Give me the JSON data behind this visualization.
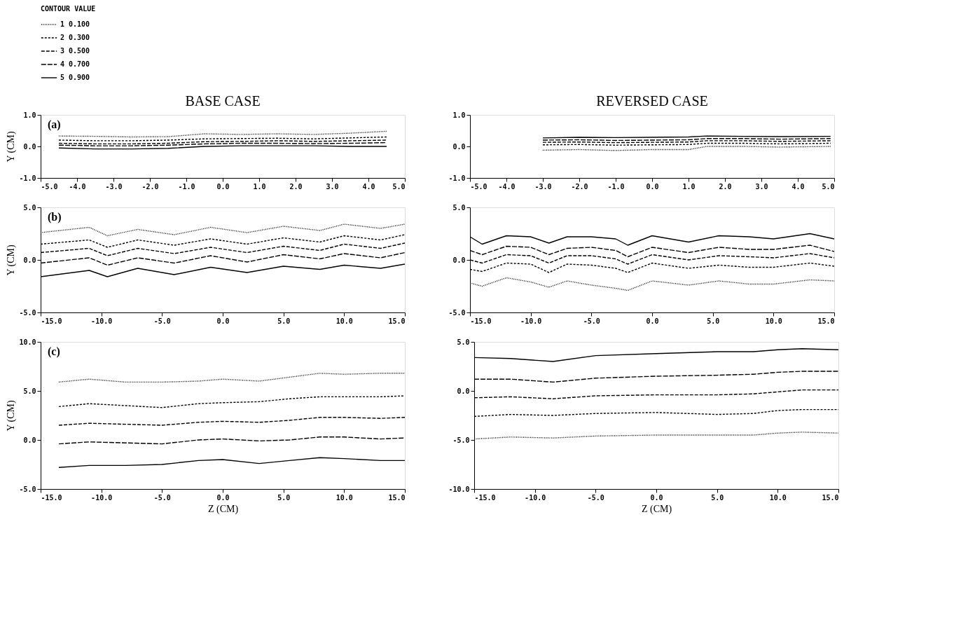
{
  "chart_data": [
    {
      "type": "line",
      "title": "BASE CASE",
      "ylabel": "Y (CM)",
      "legend": "top",
      "legend_title": "CONTOUR VALUE",
      "annotations": [
        "(a)"
      ],
      "xlim": [
        -5,
        5
      ],
      "xticks": [
        {
          "value": -5,
          "label": "-5.0"
        },
        {
          "value": -4,
          "label": "-4.0"
        },
        {
          "value": -3,
          "label": "-3.0"
        },
        {
          "value": -2,
          "label": "-2.0"
        },
        {
          "value": -1,
          "label": "-1.0"
        },
        {
          "value": 0,
          "label": "0.0"
        },
        {
          "value": 1,
          "label": "1.0"
        },
        {
          "value": 2,
          "label": "2.0"
        },
        {
          "value": 3,
          "label": "3.0"
        },
        {
          "value": 4,
          "label": "4.0"
        },
        {
          "value": 5,
          "label": "5.0"
        }
      ],
      "ylim": [
        -1,
        1
      ],
      "yticks": [
        {
          "value": -1,
          "label": "-1.0"
        },
        {
          "value": 0,
          "label": "0.0"
        },
        {
          "value": 1,
          "label": "1.0"
        }
      ],
      "x": [
        -4.5,
        -3.5,
        -2.5,
        -1.5,
        -0.5,
        0.5,
        1.5,
        2.5,
        3.5,
        4.5
      ],
      "series": [
        {
          "name": "1 0.100",
          "color": "#000000",
          "line_style": "dotted",
          "values": [
            0.33,
            0.32,
            0.3,
            0.31,
            0.4,
            0.38,
            0.4,
            0.38,
            0.42,
            0.48
          ]
        },
        {
          "name": "2 0.300",
          "color": "#000000",
          "line_style": "dashed",
          "values": [
            0.2,
            0.18,
            0.18,
            0.2,
            0.24,
            0.25,
            0.26,
            0.24,
            0.27,
            0.3
          ]
        },
        {
          "name": "3 0.500",
          "color": "#000000",
          "line_style": "dashed",
          "values": [
            0.1,
            0.08,
            0.08,
            0.1,
            0.15,
            0.16,
            0.18,
            0.16,
            0.18,
            0.2
          ]
        },
        {
          "name": "4 0.700",
          "color": "#000000",
          "line_style": "dashed",
          "values": [
            0.04,
            0.02,
            0.02,
            0.04,
            0.08,
            0.1,
            0.1,
            0.09,
            0.1,
            0.12
          ]
        },
        {
          "name": "5 0.900",
          "color": "#000000",
          "line_style": "solid",
          "values": [
            -0.05,
            -0.08,
            -0.08,
            -0.06,
            0.0,
            0.02,
            0.02,
            0.02,
            0.0,
            0.0
          ]
        }
      ]
    },
    {
      "type": "line",
      "title": "REVERSED CASE",
      "xlim": [
        -5,
        5
      ],
      "xticks": [
        {
          "value": -5,
          "label": "-5.0"
        },
        {
          "value": -4,
          "label": "-4.0"
        },
        {
          "value": -3,
          "label": "-3.0"
        },
        {
          "value": -2,
          "label": "-2.0"
        },
        {
          "value": -1,
          "label": "-1.0"
        },
        {
          "value": 0,
          "label": "0.0"
        },
        {
          "value": 1,
          "label": "1.0"
        },
        {
          "value": 2,
          "label": "2.0"
        },
        {
          "value": 3,
          "label": "3.0"
        },
        {
          "value": 4,
          "label": "4.0"
        },
        {
          "value": 5,
          "label": "5.0"
        }
      ],
      "ylim": [
        -1,
        1
      ],
      "yticks": [
        {
          "value": -1,
          "label": "-1.0"
        },
        {
          "value": 0,
          "label": "0.0"
        },
        {
          "value": 1,
          "label": "1.0"
        }
      ],
      "x": [
        -3,
        -2,
        -1,
        0,
        1,
        1.5,
        2.5,
        3.5,
        4.9
      ],
      "series": [
        {
          "color": "#000000",
          "line_style": "dotted",
          "values": [
            -0.12,
            -0.1,
            -0.13,
            -0.1,
            -0.1,
            0.0,
            0.0,
            -0.02,
            0.0
          ]
        },
        {
          "color": "#000000",
          "line_style": "dashed",
          "values": [
            0.05,
            0.06,
            0.04,
            0.05,
            0.06,
            0.1,
            0.1,
            0.08,
            0.1
          ]
        },
        {
          "color": "#000000",
          "line_style": "dashed",
          "values": [
            0.13,
            0.14,
            0.12,
            0.13,
            0.14,
            0.18,
            0.18,
            0.16,
            0.18
          ]
        },
        {
          "color": "#000000",
          "line_style": "dashed",
          "values": [
            0.2,
            0.21,
            0.19,
            0.2,
            0.21,
            0.25,
            0.25,
            0.23,
            0.25
          ]
        },
        {
          "color": "#000000",
          "line_style": "solid",
          "values": [
            0.27,
            0.29,
            0.28,
            0.29,
            0.3,
            0.33,
            0.32,
            0.31,
            0.32
          ]
        }
      ]
    },
    {
      "type": "line",
      "ylabel": "Y (CM)",
      "annotations": [
        "(b)"
      ],
      "xlim": [
        -15,
        15
      ],
      "xticks": [
        {
          "value": -15,
          "label": "-15.0"
        },
        {
          "value": -10,
          "label": "-10.0"
        },
        {
          "value": -5,
          "label": "-5.0"
        },
        {
          "value": 0,
          "label": "0.0"
        },
        {
          "value": 5,
          "label": "5.0"
        },
        {
          "value": 10,
          "label": "10.0"
        },
        {
          "value": 15,
          "label": "15.0"
        }
      ],
      "ylim": [
        -5,
        5
      ],
      "yticks": [
        {
          "value": -5,
          "label": "-5.0"
        },
        {
          "value": 0,
          "label": "0.0"
        },
        {
          "value": 5,
          "label": "5.0"
        }
      ],
      "x": [
        -15,
        -11,
        -9.5,
        -7,
        -4,
        -1,
        2,
        5,
        8,
        10,
        13,
        15
      ],
      "series": [
        {
          "color": "#000000",
          "line_style": "dotted",
          "values": [
            2.6,
            3.1,
            2.3,
            2.9,
            2.4,
            3.1,
            2.6,
            3.2,
            2.8,
            3.4,
            3.0,
            3.4
          ]
        },
        {
          "color": "#000000",
          "line_style": "dashed",
          "values": [
            1.5,
            1.9,
            1.2,
            1.9,
            1.4,
            2.0,
            1.5,
            2.1,
            1.7,
            2.3,
            1.9,
            2.4
          ]
        },
        {
          "color": "#000000",
          "line_style": "dashed",
          "values": [
            0.7,
            1.1,
            0.4,
            1.1,
            0.6,
            1.2,
            0.7,
            1.3,
            0.9,
            1.5,
            1.1,
            1.6
          ]
        },
        {
          "color": "#000000",
          "line_style": "dashed",
          "values": [
            -0.3,
            0.2,
            -0.5,
            0.2,
            -0.3,
            0.4,
            -0.2,
            0.5,
            0.1,
            0.6,
            0.2,
            0.7
          ]
        },
        {
          "color": "#000000",
          "line_style": "solid",
          "values": [
            -1.6,
            -1.0,
            -1.6,
            -0.8,
            -1.4,
            -0.7,
            -1.2,
            -0.6,
            -0.9,
            -0.5,
            -0.8,
            -0.4
          ]
        }
      ]
    },
    {
      "type": "line",
      "xlim": [
        -15,
        15
      ],
      "xticks": [
        {
          "value": -15,
          "label": "-15.0"
        },
        {
          "value": -10,
          "label": "-10.0"
        },
        {
          "value": -5,
          "label": "-5.0"
        },
        {
          "value": 0,
          "label": "0.0"
        },
        {
          "value": 5,
          "label": "5.0"
        },
        {
          "value": 10,
          "label": "10.0"
        },
        {
          "value": 15,
          "label": "15.0"
        }
      ],
      "ylim": [
        -5,
        5
      ],
      "yticks": [
        {
          "value": -5,
          "label": "-5.0"
        },
        {
          "value": 0,
          "label": "0.0"
        },
        {
          "value": 5,
          "label": "5.0"
        }
      ],
      "x": [
        -15,
        -14,
        -12,
        -10,
        -8.5,
        -7,
        -5,
        -3,
        -2,
        0,
        3,
        5.5,
        8,
        10,
        13,
        15
      ],
      "series": [
        {
          "color": "#000000",
          "line_style": "dotted",
          "values": [
            -2.2,
            -2.5,
            -1.7,
            -2.1,
            -2.6,
            -2.0,
            -2.4,
            -2.7,
            -2.9,
            -2.0,
            -2.4,
            -2.0,
            -2.3,
            -2.3,
            -1.9,
            -2.0
          ]
        },
        {
          "color": "#000000",
          "line_style": "dashed",
          "values": [
            -0.9,
            -1.1,
            -0.3,
            -0.4,
            -1.2,
            -0.4,
            -0.5,
            -0.8,
            -1.2,
            -0.3,
            -0.8,
            -0.5,
            -0.7,
            -0.7,
            -0.3,
            -0.6
          ]
        },
        {
          "color": "#000000",
          "line_style": "dashed",
          "values": [
            0.0,
            -0.3,
            0.5,
            0.4,
            -0.3,
            0.4,
            0.4,
            0.1,
            -0.4,
            0.5,
            0.0,
            0.4,
            0.3,
            0.2,
            0.6,
            0.2
          ]
        },
        {
          "color": "#000000",
          "line_style": "dashed",
          "values": [
            0.9,
            0.5,
            1.3,
            1.2,
            0.5,
            1.1,
            1.2,
            0.9,
            0.3,
            1.2,
            0.7,
            1.2,
            1.0,
            1.0,
            1.4,
            0.8
          ]
        },
        {
          "color": "#000000",
          "line_style": "solid",
          "values": [
            2.2,
            1.5,
            2.3,
            2.2,
            1.6,
            2.2,
            2.2,
            2.0,
            1.4,
            2.3,
            1.7,
            2.3,
            2.2,
            2.0,
            2.5,
            2.0
          ]
        }
      ]
    },
    {
      "type": "line",
      "ylabel": "Y (CM)",
      "xlabel": "Z (CM)",
      "annotations": [
        "(c)"
      ],
      "xlim": [
        -15,
        15
      ],
      "xticks": [
        {
          "value": -15,
          "label": "-15.0"
        },
        {
          "value": -10,
          "label": "-10.0"
        },
        {
          "value": -5,
          "label": "-5.0"
        },
        {
          "value": 0,
          "label": "0.0"
        },
        {
          "value": 5,
          "label": "5.0"
        },
        {
          "value": 10,
          "label": "10.0"
        },
        {
          "value": 15,
          "label": "15.0"
        }
      ],
      "ylim": [
        -5,
        10
      ],
      "yticks": [
        {
          "value": -5,
          "label": "-5.0"
        },
        {
          "value": 0,
          "label": "0.0"
        },
        {
          "value": 5,
          "label": "5.0"
        },
        {
          "value": 10,
          "label": "10.0"
        }
      ],
      "x": [
        -13.5,
        -11,
        -8,
        -5,
        -2,
        0,
        3,
        5.5,
        8,
        10,
        13,
        15
      ],
      "series": [
        {
          "color": "#000000",
          "line_style": "dotted",
          "values": [
            5.9,
            6.2,
            5.9,
            5.9,
            6.0,
            6.2,
            6.0,
            6.4,
            6.8,
            6.7,
            6.8,
            6.8
          ]
        },
        {
          "color": "#000000",
          "line_style": "dashed",
          "values": [
            3.4,
            3.7,
            3.5,
            3.3,
            3.7,
            3.8,
            3.9,
            4.2,
            4.4,
            4.4,
            4.4,
            4.5
          ]
        },
        {
          "color": "#000000",
          "line_style": "dashed",
          "values": [
            1.5,
            1.7,
            1.6,
            1.5,
            1.8,
            1.9,
            1.8,
            2.0,
            2.3,
            2.3,
            2.2,
            2.3
          ]
        },
        {
          "color": "#000000",
          "line_style": "dashed",
          "values": [
            -0.4,
            -0.2,
            -0.3,
            -0.4,
            0.0,
            0.1,
            -0.1,
            0.0,
            0.3,
            0.3,
            0.1,
            0.2
          ]
        },
        {
          "color": "#000000",
          "line_style": "solid",
          "values": [
            -2.8,
            -2.6,
            -2.6,
            -2.5,
            -2.1,
            -2.0,
            -2.4,
            -2.1,
            -1.8,
            -1.9,
            -2.1,
            -2.1
          ]
        }
      ]
    },
    {
      "type": "line",
      "xlabel": "Z (CM)",
      "xlim": [
        -15,
        15
      ],
      "xticks": [
        {
          "value": -15,
          "label": "-15.0"
        },
        {
          "value": -10,
          "label": "-10.0"
        },
        {
          "value": -5,
          "label": "-5.0"
        },
        {
          "value": 0,
          "label": "0.0"
        },
        {
          "value": 5,
          "label": "5.0"
        },
        {
          "value": 10,
          "label": "10.0"
        },
        {
          "value": 15,
          "label": "15.0"
        }
      ],
      "ylim": [
        -10,
        5
      ],
      "yticks": [
        {
          "value": -10,
          "label": "-10.0"
        },
        {
          "value": -5,
          "label": "-5.0"
        },
        {
          "value": 0,
          "label": "0.0"
        },
        {
          "value": 5,
          "label": "5.0"
        }
      ],
      "x": [
        -15,
        -12,
        -8.5,
        -5,
        0,
        5,
        8,
        10,
        12,
        15
      ],
      "series": [
        {
          "color": "#000000",
          "line_style": "dotted",
          "values": [
            -4.9,
            -4.7,
            -4.8,
            -4.6,
            -4.5,
            -4.5,
            -4.5,
            -4.3,
            -4.2,
            -4.3
          ]
        },
        {
          "color": "#000000",
          "line_style": "dashed",
          "values": [
            -2.6,
            -2.4,
            -2.5,
            -2.3,
            -2.2,
            -2.4,
            -2.3,
            -2.0,
            -1.9,
            -1.9
          ]
        },
        {
          "color": "#000000",
          "line_style": "dashed",
          "values": [
            -0.7,
            -0.6,
            -0.8,
            -0.5,
            -0.4,
            -0.4,
            -0.3,
            -0.1,
            0.1,
            0.1
          ]
        },
        {
          "color": "#000000",
          "line_style": "dashed",
          "values": [
            1.2,
            1.2,
            0.9,
            1.3,
            1.5,
            1.6,
            1.7,
            1.9,
            2.0,
            2.0
          ]
        },
        {
          "color": "#000000",
          "line_style": "solid",
          "values": [
            3.4,
            3.3,
            3.0,
            3.6,
            3.8,
            4.0,
            4.0,
            4.2,
            4.3,
            4.2
          ]
        }
      ]
    }
  ]
}
